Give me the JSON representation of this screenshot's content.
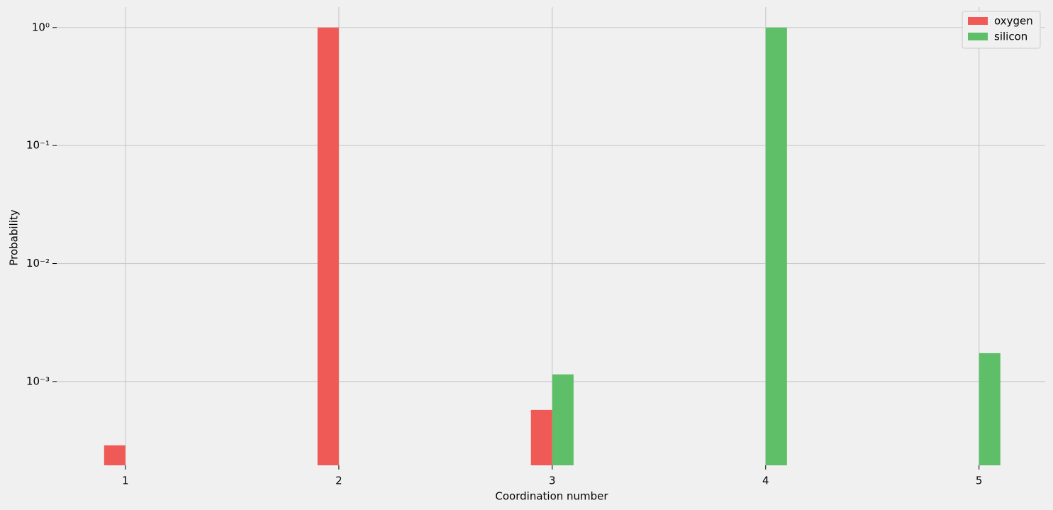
{
  "chart_data": {
    "type": "bar",
    "xlabel": "Coordination number",
    "ylabel": "Probability",
    "x": [
      1,
      2,
      3,
      4,
      5
    ],
    "series": [
      {
        "name": "oxygen",
        "color": "#f05a56",
        "values": [
          0.000288,
          1,
          0.000575,
          null,
          null
        ]
      },
      {
        "name": "silicon",
        "color": "#5fbf69",
        "values": [
          null,
          null,
          0.00115,
          1,
          0.00174
        ]
      }
    ],
    "xlim": [
      0.678,
      5.31
    ],
    "xticks": [
      1,
      2,
      3,
      4,
      5
    ],
    "ylim": [
      0.000195,
      1.49
    ],
    "ylog": true,
    "yticks": [
      {
        "value": 1,
        "label": "10⁰"
      },
      {
        "value": 0.1,
        "label": "10⁻¹"
      },
      {
        "value": 0.01,
        "label": "10⁻²"
      },
      {
        "value": 0.001,
        "label": "10⁻³"
      }
    ],
    "grid": true,
    "legend": "upper right"
  }
}
